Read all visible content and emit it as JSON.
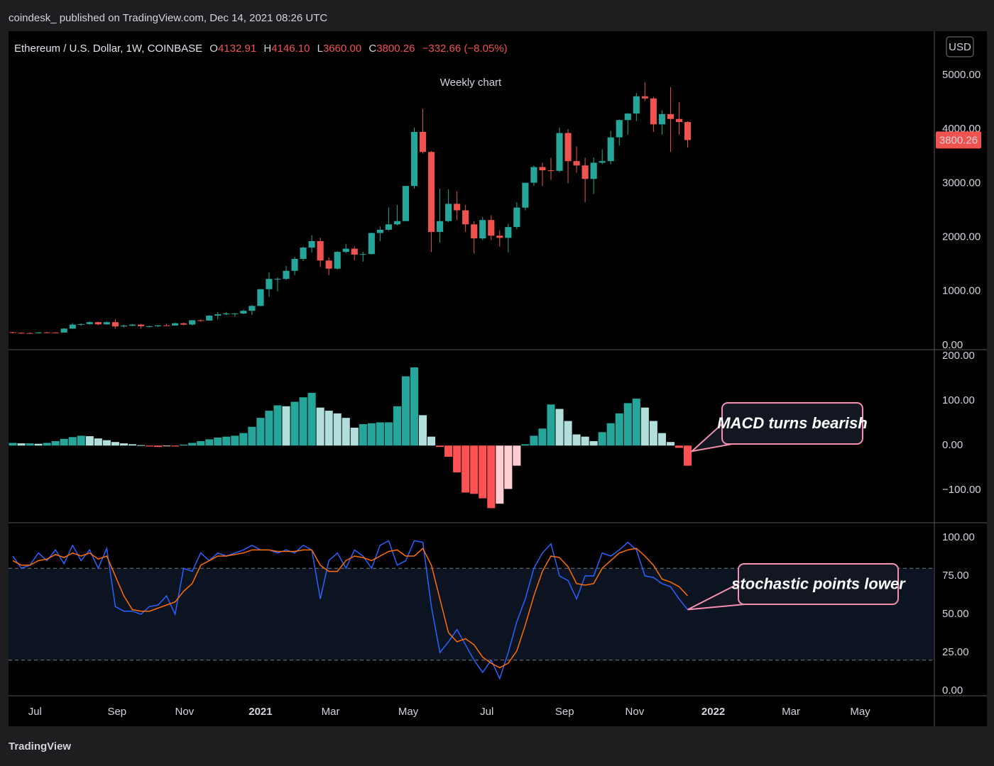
{
  "header": {
    "publisher": "coindesk_ published on TradingView.com, Dec 14, 2021 08:26 UTC"
  },
  "legend": {
    "symbol": "Ethereum / U.S. Dollar, 1W, COINBASE",
    "o_label": "O",
    "open": "4132.91",
    "h_label": "H",
    "high": "4146.10",
    "l_label": "L",
    "low": "3660.00",
    "c_label": "C",
    "close": "3800.26",
    "change": "−332.66 (−8.05%)"
  },
  "currency": "USD",
  "last_price_label": "3800.26",
  "footer": {
    "logo": "TradingView"
  },
  "x_axis": {
    "xlim": [
      -0.5,
      107.8
    ],
    "xticks": [
      {
        "value": 2.6,
        "label": "Jul"
      },
      {
        "value": 12.2,
        "label": "Sep"
      },
      {
        "value": 20.1,
        "label": "Nov"
      },
      {
        "value": 29.0,
        "label": "2021"
      },
      {
        "value": 37.2,
        "label": "Mar"
      },
      {
        "value": 46.3,
        "label": "May"
      },
      {
        "value": 55.5,
        "label": "Jul"
      },
      {
        "value": 64.6,
        "label": "Sep"
      },
      {
        "value": 72.8,
        "label": "Nov"
      },
      {
        "value": 82.0,
        "label": "2022"
      },
      {
        "value": 91.1,
        "label": "Mar"
      },
      {
        "value": 99.2,
        "label": "May"
      }
    ]
  },
  "chart_data": [
    {
      "type": "candlestick",
      "title": "Weekly chart",
      "up_color": "#26a69a",
      "down_color": "#ef5350",
      "ohlc": [
        [
          244,
          250,
          222,
          232
        ],
        [
          232,
          245,
          215,
          228
        ],
        [
          228,
          240,
          218,
          225
        ],
        [
          225,
          245,
          222,
          240
        ],
        [
          240,
          250,
          232,
          239
        ],
        [
          239,
          245,
          230,
          238
        ],
        [
          238,
          320,
          236,
          310
        ],
        [
          310,
          415,
          305,
          385
        ],
        [
          385,
          410,
          360,
          395
        ],
        [
          395,
          445,
          380,
          430
        ],
        [
          430,
          440,
          375,
          390
        ],
        [
          390,
          440,
          380,
          430
        ],
        [
          430,
          490,
          310,
          350
        ],
        [
          350,
          380,
          330,
          365
        ],
        [
          365,
          395,
          355,
          385
        ],
        [
          385,
          395,
          310,
          355
        ],
        [
          355,
          365,
          335,
          355
        ],
        [
          355,
          375,
          340,
          370
        ],
        [
          370,
          395,
          360,
          368
        ],
        [
          368,
          420,
          365,
          410
        ],
        [
          410,
          420,
          370,
          385
        ],
        [
          385,
          470,
          370,
          465
        ],
        [
          465,
          480,
          440,
          460
        ],
        [
          460,
          560,
          455,
          550
        ],
        [
          550,
          620,
          480,
          575
        ],
        [
          575,
          620,
          560,
          590
        ],
        [
          590,
          600,
          530,
          590
        ],
        [
          590,
          665,
          580,
          640
        ],
        [
          640,
          750,
          560,
          730
        ],
        [
          730,
          1040,
          720,
          1040
        ],
        [
          1040,
          1350,
          900,
          1230
        ],
        [
          1230,
          1260,
          1000,
          1230
        ],
        [
          1230,
          1470,
          1210,
          1380
        ],
        [
          1380,
          1640,
          1300,
          1600
        ],
        [
          1600,
          1830,
          1560,
          1810
        ],
        [
          1810,
          2040,
          1720,
          1930
        ],
        [
          1930,
          1990,
          1450,
          1570
        ],
        [
          1570,
          1630,
          1300,
          1420
        ],
        [
          1420,
          1740,
          1400,
          1730
        ],
        [
          1730,
          1880,
          1710,
          1790
        ],
        [
          1790,
          1830,
          1580,
          1680
        ],
        [
          1680,
          1730,
          1550,
          1690
        ],
        [
          1690,
          2090,
          1680,
          2080
        ],
        [
          2080,
          2200,
          1930,
          2140
        ],
        [
          2140,
          2550,
          2120,
          2240
        ],
        [
          2240,
          2600,
          2220,
          2300
        ],
        [
          2300,
          2950,
          2300,
          2950
        ],
        [
          2950,
          4030,
          2900,
          3950
        ],
        [
          3950,
          4380,
          3550,
          3580
        ],
        [
          3580,
          3600,
          1730,
          2100
        ],
        [
          2100,
          2900,
          1900,
          2300
        ],
        [
          2300,
          2890,
          2280,
          2620
        ],
        [
          2620,
          2850,
          2320,
          2500
        ],
        [
          2500,
          2600,
          2100,
          2240
        ],
        [
          2240,
          2300,
          1700,
          1980
        ],
        [
          1980,
          2380,
          1950,
          2320
        ],
        [
          2320,
          2410,
          1950,
          2030
        ],
        [
          2030,
          2130,
          1830,
          1990
        ],
        [
          1990,
          2250,
          1720,
          2190
        ],
        [
          2190,
          2650,
          2150,
          2550
        ],
        [
          2550,
          3010,
          2500,
          3010
        ],
        [
          3010,
          3330,
          2950,
          3300
        ],
        [
          3300,
          3380,
          2950,
          3240
        ],
        [
          3240,
          3470,
          3060,
          3230
        ],
        [
          3230,
          4030,
          3200,
          3930
        ],
        [
          3930,
          4000,
          3000,
          3410
        ],
        [
          3410,
          3680,
          3200,
          3330
        ],
        [
          3330,
          3470,
          2650,
          3080
        ],
        [
          3080,
          3480,
          2800,
          3380
        ],
        [
          3380,
          3630,
          3350,
          3410
        ],
        [
          3410,
          3970,
          3350,
          3850
        ],
        [
          3850,
          4180,
          3700,
          4170
        ],
        [
          4170,
          4300,
          3900,
          4290
        ],
        [
          4290,
          4670,
          4150,
          4610
        ],
        [
          4610,
          4870,
          4520,
          4570
        ],
        [
          4570,
          4600,
          3950,
          4090
        ],
        [
          4090,
          4350,
          3900,
          4280
        ],
        [
          4280,
          4780,
          3580,
          4190
        ],
        [
          4190,
          4500,
          3900,
          4132.91
        ],
        [
          4132.91,
          4146.1,
          3660,
          3800.26
        ]
      ],
      "ylim": [
        -66,
        5814
      ],
      "yticks": [
        {
          "value": 0,
          "label": "0.00"
        },
        {
          "value": 1000,
          "label": "1000.00"
        },
        {
          "value": 2000,
          "label": "2000.00"
        },
        {
          "value": 3000,
          "label": "3000.00"
        },
        {
          "value": 4000,
          "label": "4000.00"
        },
        {
          "value": 5000,
          "label": "5000.00"
        }
      ]
    },
    {
      "type": "bar",
      "values": [
        6,
        5,
        5,
        4,
        6,
        10,
        15,
        19,
        22,
        21,
        16,
        12,
        8,
        5,
        3,
        1,
        -2,
        -3,
        -1,
        -2,
        2,
        6,
        10,
        14,
        18,
        20,
        22,
        28,
        42,
        62,
        78,
        90,
        88,
        98,
        108,
        118,
        85,
        78,
        72,
        62,
        40,
        48,
        50,
        52,
        52,
        88,
        155,
        175,
        68,
        20,
        -3,
        -25,
        -60,
        -105,
        -108,
        -118,
        -140,
        -130,
        -97,
        -45,
        3,
        22,
        38,
        92,
        82,
        55,
        25,
        20,
        10,
        30,
        50,
        72,
        95,
        105,
        85,
        55,
        28,
        8,
        -5,
        -45
      ],
      "colors": {
        "rising_positive": "#26a69a",
        "falling_positive": "#b2dfdb",
        "falling_negative": "#ff5252",
        "rising_negative": "#ffcdd2"
      },
      "ylim": [
        -171,
        213
      ],
      "yticks": [
        {
          "value": -100,
          "label": "−100.00"
        },
        {
          "value": 0,
          "label": "0.00"
        },
        {
          "value": 100,
          "label": "100.00"
        },
        {
          "value": 200,
          "label": "200.00"
        }
      ],
      "annotation": "MACD turns bearish"
    },
    {
      "type": "line",
      "series": [
        {
          "color": "#2962ff",
          "values": [
            88,
            80,
            82,
            90,
            85,
            92,
            83,
            95,
            85,
            92,
            80,
            93,
            55,
            52,
            52,
            50,
            55,
            56,
            62,
            50,
            80,
            78,
            90,
            85,
            90,
            88,
            90,
            92,
            95,
            92,
            92,
            90,
            92,
            90,
            95,
            92,
            60,
            85,
            90,
            80,
            92,
            88,
            80,
            95,
            98,
            82,
            85,
            98,
            97,
            55,
            25,
            32,
            40,
            30,
            20,
            12,
            20,
            8,
            25,
            45,
            60,
            80,
            90,
            96,
            75,
            72,
            60,
            75,
            75,
            90,
            88,
            92,
            97,
            92,
            75,
            74,
            70,
            68,
            60,
            53
          ]
        },
        {
          "color": "#ff6d00",
          "values": [
            85,
            82,
            82,
            85,
            86,
            89,
            87,
            90,
            88,
            90,
            86,
            88,
            75,
            62,
            53,
            52,
            52,
            54,
            56,
            58,
            65,
            70,
            82,
            85,
            88,
            88,
            89,
            90,
            92,
            92,
            92,
            91,
            91,
            91,
            92,
            92,
            82,
            78,
            78,
            85,
            88,
            87,
            85,
            88,
            91,
            92,
            88,
            88,
            93,
            82,
            60,
            38,
            32,
            34,
            30,
            22,
            18,
            15,
            18,
            26,
            43,
            62,
            78,
            88,
            87,
            81,
            70,
            69,
            70,
            80,
            85,
            90,
            92,
            93,
            88,
            82,
            73,
            71,
            68,
            62
          ]
        }
      ],
      "ylim": [
        -2.8,
        109.3
      ],
      "yticks": [
        {
          "value": 0,
          "label": "0.00"
        },
        {
          "value": 25,
          "label": "25.00"
        },
        {
          "value": 50,
          "label": "50.00"
        },
        {
          "value": 75,
          "label": "75.00"
        },
        {
          "value": 100,
          "label": "100.00"
        }
      ],
      "bands": [
        80,
        20
      ],
      "annotation": "stochastic points lower"
    }
  ]
}
